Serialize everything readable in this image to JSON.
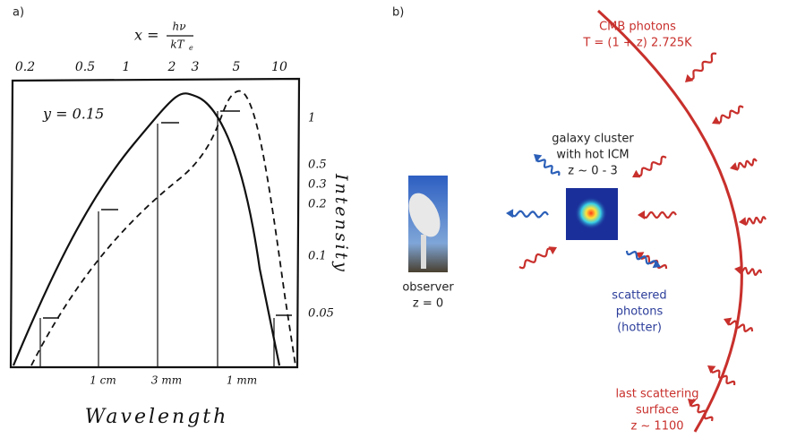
{
  "panel_a": {
    "label": "a)",
    "formula": {
      "lhs": "x =",
      "numerator": "hν",
      "denominator": "kT",
      "subscript": "e"
    },
    "top_ticks": [
      "0.2",
      "0.5",
      "1",
      "2",
      "3",
      "5",
      "10"
    ],
    "right_ticks": [
      "1",
      "0.5",
      "0.3",
      "0.2",
      "0.1",
      "0.05"
    ],
    "right_label": "Intensity",
    "annotation": "y = 0.15",
    "bottom_ticks": [
      "1 cm",
      "3 mm",
      "1 mm"
    ],
    "bottom_label": "Wavelength"
  },
  "panel_b": {
    "label": "b)",
    "cmb": [
      "CMB photons",
      "T = (1 + z) 2.725K"
    ],
    "cluster": [
      "galaxy cluster",
      "with hot ICM",
      "z ~ 0 - 3"
    ],
    "observer": [
      "observer",
      "z = 0"
    ],
    "scattered": [
      "scattered",
      "photons",
      "(hotter)"
    ],
    "last_scattering": [
      "last scattering",
      "surface",
      "z ~ 1100"
    ]
  }
}
